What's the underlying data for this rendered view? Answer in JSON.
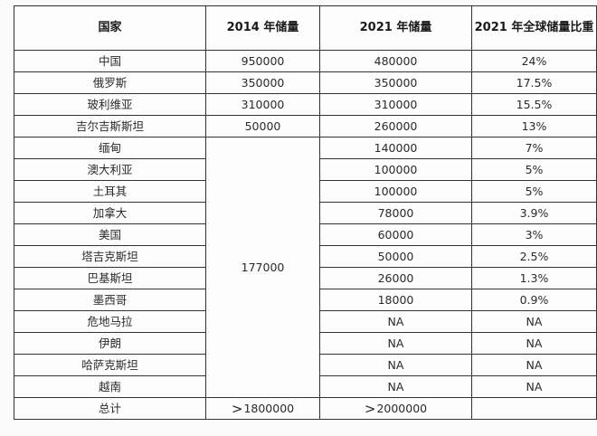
{
  "table": {
    "headers": {
      "country": "国家",
      "reserves_2014": "2014 年储量",
      "reserves_2021": "2021 年储量",
      "share_2021": "2021 年全球储量比重"
    },
    "rows": [
      {
        "country": "中国",
        "reserves_2014": "950000",
        "reserves_2021": "480000",
        "share_2021": "24%"
      },
      {
        "country": "俄罗斯",
        "reserves_2014": "350000",
        "reserves_2021": "350000",
        "share_2021": "17.5%"
      },
      {
        "country": "玻利维亚",
        "reserves_2014": "310000",
        "reserves_2021": "310000",
        "share_2021": "15.5%"
      },
      {
        "country": "吉尔吉斯斯坦",
        "reserves_2014": "50000",
        "reserves_2021": "260000",
        "share_2021": "13%"
      },
      {
        "country": "缅甸",
        "reserves_2021": "140000",
        "share_2021": "7%"
      },
      {
        "country": "澳大利亚",
        "reserves_2021": "100000",
        "share_2021": "5%"
      },
      {
        "country": "土耳其",
        "reserves_2021": "100000",
        "share_2021": "5%"
      },
      {
        "country": "加拿大",
        "reserves_2021": "78000",
        "share_2021": "3.9%"
      },
      {
        "country": "美国",
        "reserves_2021": "60000",
        "share_2021": "3%"
      },
      {
        "country": "塔吉克斯坦",
        "reserves_2021": "50000",
        "share_2021": "2.5%"
      },
      {
        "country": "巴基斯坦",
        "reserves_2021": "26000",
        "share_2021": "1.3%"
      },
      {
        "country": "墨西哥",
        "reserves_2021": "18000",
        "share_2021": "0.9%"
      },
      {
        "country": "危地马拉",
        "reserves_2021": "NA",
        "share_2021": "NA"
      },
      {
        "country": "伊朗",
        "reserves_2021": "NA",
        "share_2021": "NA"
      },
      {
        "country": "哈萨克斯坦",
        "reserves_2021": "NA",
        "share_2021": "NA"
      },
      {
        "country": "越南",
        "reserves_2021": "NA",
        "share_2021": "NA"
      }
    ],
    "merged_2014_others": "177000",
    "total": {
      "label": "总计",
      "gt_symbol": ">",
      "reserves_2014": "1800000",
      "reserves_2021": "2000000",
      "share_2021": ""
    }
  }
}
